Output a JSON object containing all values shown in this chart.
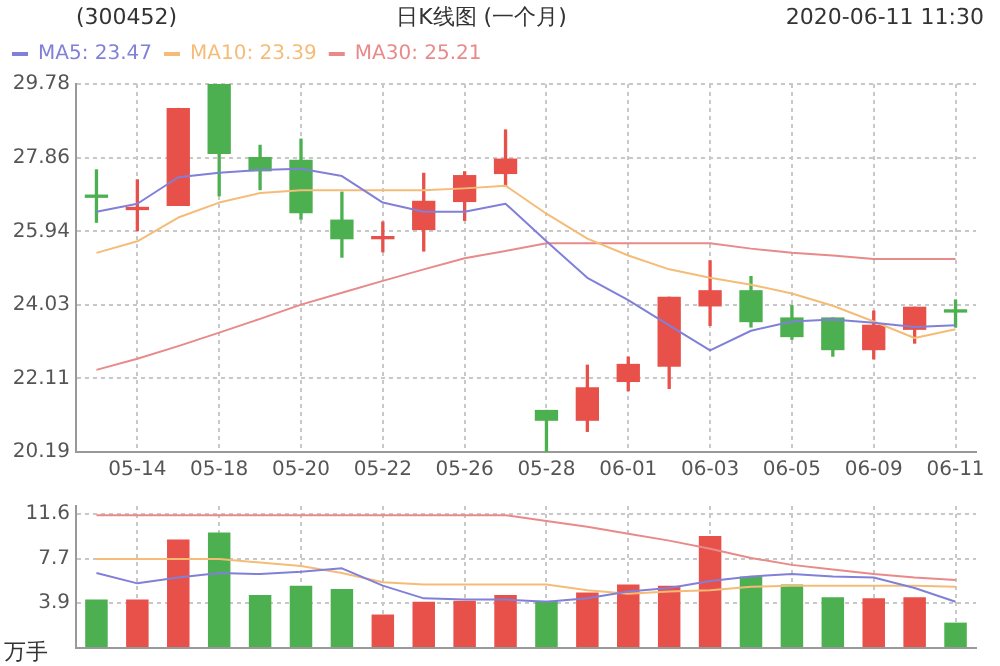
{
  "chart_data": [
    {
      "type": "candlestick",
      "title": "日K线图 (一个月)",
      "annotations": [
        "(300452)",
        "2020-06-11 11:30"
      ],
      "categories": [
        null,
        "05-14",
        null,
        "05-18",
        null,
        "05-20",
        null,
        "05-22",
        null,
        "05-26",
        null,
        "05-28",
        null,
        "06-01",
        null,
        "06-03",
        null,
        "06-05",
        null,
        "06-09",
        null,
        "06-11"
      ],
      "ohlc": [
        [
          26.85,
          27.54,
          26.18,
          26.83
        ],
        [
          26.51,
          27.28,
          25.96,
          26.52
        ],
        [
          26.62,
          29.14,
          26.62,
          29.14
        ],
        [
          29.78,
          29.78,
          26.87,
          27.97
        ],
        [
          27.86,
          28.18,
          27.03,
          27.52
        ],
        [
          27.79,
          28.34,
          26.26,
          26.43
        ],
        [
          26.23,
          26.96,
          25.27,
          25.75
        ],
        [
          25.75,
          26.18,
          25.41,
          25.76
        ],
        [
          25.99,
          27.45,
          25.43,
          26.72
        ],
        [
          26.72,
          27.49,
          26.23,
          27.39
        ],
        [
          27.45,
          28.58,
          27.13,
          27.82
        ],
        [
          21.27,
          21.27,
          20.19,
          21.02
        ],
        [
          21.02,
          22.45,
          20.73,
          21.86
        ],
        [
          22.03,
          22.66,
          21.79,
          22.47
        ],
        [
          22.43,
          24.22,
          21.85,
          24.22
        ],
        [
          24.0,
          25.17,
          23.49,
          24.39
        ],
        [
          24.39,
          24.76,
          23.45,
          23.59
        ],
        [
          23.68,
          24.0,
          23.13,
          23.2
        ],
        [
          23.68,
          23.68,
          22.69,
          22.86
        ],
        [
          22.86,
          23.86,
          22.62,
          23.49
        ],
        [
          23.39,
          23.96,
          23.03,
          23.96
        ],
        [
          23.86,
          24.15,
          23.45,
          23.84
        ]
      ],
      "colors": [
        "#4cb050",
        "#e8504a",
        "#e8504a",
        "#4cb050",
        "#4cb050",
        "#4cb050",
        "#4cb050",
        "#e8504a",
        "#e8504a",
        "#e8504a",
        "#e8504a",
        "#4cb050",
        "#e8504a",
        "#e8504a",
        "#e8504a",
        "#e8504a",
        "#4cb050",
        "#4cb050",
        "#4cb050",
        "#e8504a",
        "#e8504a",
        "#4cb050"
      ],
      "series": [
        {
          "type": "line",
          "name": "MA5: 23.47",
          "color": "#8080d8",
          "values": [
            26.45,
            26.66,
            27.35,
            27.47,
            27.54,
            27.57,
            27.38,
            26.69,
            26.45,
            26.45,
            26.66,
            25.68,
            24.73,
            24.15,
            23.49,
            22.84,
            23.35,
            23.59,
            23.64,
            23.56,
            23.45,
            23.49
          ]
        },
        {
          "type": "line",
          "name": "MA10: 23.39",
          "color": "#f5bc78",
          "values": [
            25.38,
            25.68,
            26.3,
            26.69,
            26.94,
            27.01,
            27.01,
            27.01,
            27.01,
            27.06,
            27.13,
            26.4,
            25.75,
            25.31,
            24.95,
            24.73,
            24.55,
            24.32,
            24.0,
            23.59,
            23.16,
            23.39
          ]
        },
        {
          "type": "line",
          "name": "MA30: 25.21",
          "color": "#e88a8a",
          "values": [
            22.33,
            22.62,
            22.95,
            23.3,
            23.66,
            24.03,
            24.34,
            24.65,
            24.95,
            25.24,
            25.43,
            25.63,
            25.63,
            25.63,
            25.63,
            25.63,
            25.49,
            25.38,
            25.31,
            25.22,
            25.22,
            25.22
          ]
        }
      ],
      "ylim": [
        20.19,
        29.78
      ],
      "yticks": [
        20.19,
        22.11,
        24.03,
        25.94,
        27.86,
        29.78
      ],
      "grid": true,
      "legend": "top left",
      "marker": "none"
    },
    {
      "type": "bar",
      "ylabel": "万手",
      "categories": [
        null,
        null,
        null,
        null,
        null,
        null,
        null,
        null,
        null,
        null,
        null,
        null,
        null,
        null,
        null,
        null,
        null,
        null,
        null,
        null,
        null,
        null
      ],
      "values": [
        4.2,
        4.2,
        9.4,
        10.0,
        4.6,
        5.4,
        5.1,
        2.9,
        4.0,
        4.1,
        4.6,
        4.1,
        4.8,
        5.5,
        5.4,
        9.7,
        6.2,
        5.5,
        4.4,
        4.3,
        4.4,
        2.2
      ],
      "colors": [
        "#4cb050",
        "#e8504a",
        "#e8504a",
        "#4cb050",
        "#4cb050",
        "#4cb050",
        "#4cb050",
        "#e8504a",
        "#e8504a",
        "#e8504a",
        "#e8504a",
        "#4cb050",
        "#e8504a",
        "#e8504a",
        "#e8504a",
        "#e8504a",
        "#4cb050",
        "#4cb050",
        "#4cb050",
        "#e8504a",
        "#e8504a",
        "#4cb050"
      ],
      "series": [
        {
          "type": "line",
          "color": "#8080d8",
          "values": [
            6.5,
            5.6,
            6.1,
            6.5,
            6.4,
            6.6,
            6.9,
            5.4,
            4.3,
            4.2,
            4.2,
            4.0,
            4.3,
            4.9,
            5.2,
            5.8,
            6.2,
            6.4,
            6.2,
            6.1,
            5.2,
            4.0
          ]
        },
        {
          "type": "line",
          "color": "#f5bc78",
          "values": [
            7.7,
            7.7,
            7.7,
            7.7,
            7.4,
            7.1,
            6.5,
            5.7,
            5.5,
            5.5,
            5.5,
            5.5,
            5.0,
            4.7,
            4.9,
            5.0,
            5.3,
            5.4,
            5.4,
            5.4,
            5.4,
            5.3
          ]
        },
        {
          "type": "line",
          "color": "#e88a8a",
          "values": [
            11.5,
            11.5,
            11.5,
            11.5,
            11.5,
            11.5,
            11.5,
            11.5,
            11.5,
            11.5,
            11.5,
            11.0,
            10.5,
            9.9,
            9.3,
            8.6,
            7.8,
            7.2,
            6.8,
            6.4,
            6.1,
            5.9
          ]
        }
      ],
      "ylim": [
        0,
        12.3
      ],
      "yticks": [
        {
          "value": 0,
          "label": null
        },
        3.9,
        7.7,
        11.6
      ],
      "grid": true,
      "tick_labels": "y",
      "marker": "none"
    }
  ]
}
